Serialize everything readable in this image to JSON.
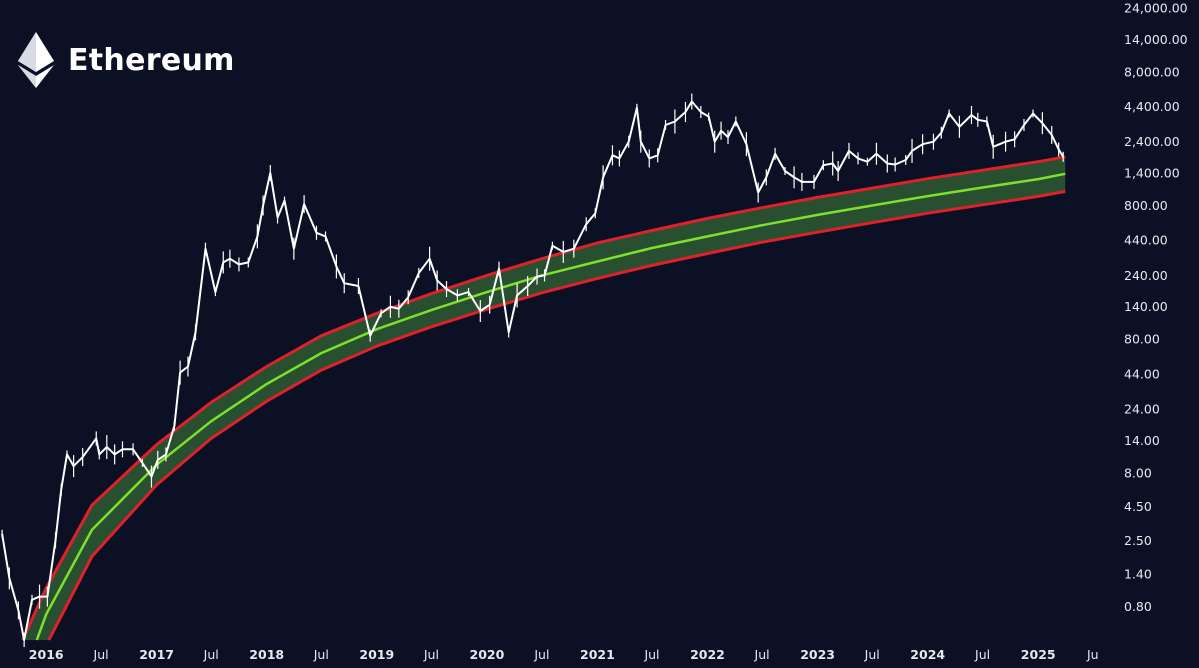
{
  "brand": {
    "title": "Ethereum",
    "logo_icon": "ethereum-diamond-icon"
  },
  "colors": {
    "background": "#0b1024",
    "price": "#ffffff",
    "band_edge": "#e0202a",
    "band_fill": "#2e5a33",
    "band_mid": "#7ee02a",
    "axis_text": "#e6e8ee"
  },
  "chart_data": {
    "type": "line",
    "yscale": "log",
    "grid": false,
    "legend": "none",
    "title": "Ethereum",
    "ylim": [
      0.45,
      24000
    ],
    "xlim": [
      "2015-08-01",
      "2025-07-25"
    ],
    "y_ticks": [
      {
        "value": 24000,
        "label": "24,000.00"
      },
      {
        "value": 14000,
        "label": "14,000.00"
      },
      {
        "value": 8000,
        "label": "8,000.00"
      },
      {
        "value": 4400,
        "label": "4,400.00"
      },
      {
        "value": 2400,
        "label": "2,400.00"
      },
      {
        "value": 1400,
        "label": "1,400.00"
      },
      {
        "value": 800,
        "label": "800.00"
      },
      {
        "value": 440,
        "label": "440.00"
      },
      {
        "value": 240,
        "label": "240.00"
      },
      {
        "value": 140,
        "label": "140.00"
      },
      {
        "value": 80,
        "label": "80.00"
      },
      {
        "value": 44,
        "label": "44.00"
      },
      {
        "value": 24,
        "label": "24.00"
      },
      {
        "value": 14,
        "label": "14.00"
      },
      {
        "value": 8,
        "label": "8.00"
      },
      {
        "value": 4.5,
        "label": "4.50"
      },
      {
        "value": 2.5,
        "label": "2.50"
      },
      {
        "value": 1.4,
        "label": "1.40"
      },
      {
        "value": 0.8,
        "label": "0.80"
      }
    ],
    "x_ticks": [
      {
        "date": "2016-01-01",
        "label": "2016",
        "bold": true
      },
      {
        "date": "2016-07-01",
        "label": "Jul",
        "bold": false
      },
      {
        "date": "2017-01-01",
        "label": "2017",
        "bold": true
      },
      {
        "date": "2017-07-01",
        "label": "Jul",
        "bold": false
      },
      {
        "date": "2018-01-01",
        "label": "2018",
        "bold": true
      },
      {
        "date": "2018-07-01",
        "label": "Jul",
        "bold": false
      },
      {
        "date": "2019-01-01",
        "label": "2019",
        "bold": true
      },
      {
        "date": "2019-07-01",
        "label": "Jul",
        "bold": false
      },
      {
        "date": "2020-01-01",
        "label": "2020",
        "bold": true
      },
      {
        "date": "2020-07-01",
        "label": "Jul",
        "bold": false
      },
      {
        "date": "2021-01-01",
        "label": "2021",
        "bold": true
      },
      {
        "date": "2021-07-01",
        "label": "Jul",
        "bold": false
      },
      {
        "date": "2022-01-01",
        "label": "2022",
        "bold": true
      },
      {
        "date": "2022-07-01",
        "label": "Jul",
        "bold": false
      },
      {
        "date": "2023-01-01",
        "label": "2023",
        "bold": true
      },
      {
        "date": "2023-07-01",
        "label": "Jul",
        "bold": false
      },
      {
        "date": "2024-01-01",
        "label": "2024",
        "bold": true
      },
      {
        "date": "2024-07-01",
        "label": "Jul",
        "bold": false
      },
      {
        "date": "2025-01-01",
        "label": "2025",
        "bold": true
      },
      {
        "date": "2025-07-01",
        "label": "Ju",
        "bold": false
      }
    ],
    "series": [
      {
        "kind": "price",
        "points": [
          [
            "2015-08-08",
            2.8
          ],
          [
            "2015-09-01",
            1.3
          ],
          [
            "2015-10-01",
            0.75
          ],
          [
            "2015-10-20",
            0.45
          ],
          [
            "2015-11-15",
            0.9
          ],
          [
            "2015-12-10",
            0.95
          ],
          [
            "2016-01-05",
            0.95
          ],
          [
            "2016-02-01",
            2.5
          ],
          [
            "2016-02-20",
            6.0
          ],
          [
            "2016-03-10",
            11.0
          ],
          [
            "2016-04-01",
            9.0
          ],
          [
            "2016-05-01",
            10.5
          ],
          [
            "2016-06-15",
            14.5
          ],
          [
            "2016-06-25",
            11.0
          ],
          [
            "2016-07-20",
            12.5
          ],
          [
            "2016-08-15",
            11.0
          ],
          [
            "2016-09-10",
            12.0
          ],
          [
            "2016-10-15",
            12.0
          ],
          [
            "2016-11-15",
            9.5
          ],
          [
            "2016-12-15",
            7.5
          ],
          [
            "2017-01-05",
            10.0
          ],
          [
            "2017-02-01",
            11.0
          ],
          [
            "2017-03-01",
            18.0
          ],
          [
            "2017-03-20",
            45.0
          ],
          [
            "2017-04-15",
            50.0
          ],
          [
            "2017-05-10",
            90.0
          ],
          [
            "2017-06-12",
            380.0
          ],
          [
            "2017-07-15",
            180.0
          ],
          [
            "2017-08-10",
            300.0
          ],
          [
            "2017-09-01",
            320.0
          ],
          [
            "2017-10-01",
            290.0
          ],
          [
            "2017-11-01",
            300.0
          ],
          [
            "2017-12-01",
            470.0
          ],
          [
            "2017-12-20",
            800.0
          ],
          [
            "2018-01-13",
            1400.0
          ],
          [
            "2018-02-06",
            650.0
          ],
          [
            "2018-03-01",
            870.0
          ],
          [
            "2018-04-01",
            380.0
          ],
          [
            "2018-05-05",
            820.0
          ],
          [
            "2018-06-15",
            500.0
          ],
          [
            "2018-07-15",
            470.0
          ],
          [
            "2018-08-20",
            280.0
          ],
          [
            "2018-09-15",
            210.0
          ],
          [
            "2018-11-01",
            200.0
          ],
          [
            "2018-12-10",
            85.0
          ],
          [
            "2019-01-15",
            125.0
          ],
          [
            "2019-02-15",
            140.0
          ],
          [
            "2019-03-15",
            135.0
          ],
          [
            "2019-04-15",
            165.0
          ],
          [
            "2019-05-20",
            250.0
          ],
          [
            "2019-06-25",
            320.0
          ],
          [
            "2019-07-20",
            220.0
          ],
          [
            "2019-08-20",
            190.0
          ],
          [
            "2019-09-25",
            170.0
          ],
          [
            "2019-11-01",
            180.0
          ],
          [
            "2019-12-10",
            130.0
          ],
          [
            "2020-01-10",
            145.0
          ],
          [
            "2020-02-10",
            270.0
          ],
          [
            "2020-03-13",
            90.0
          ],
          [
            "2020-04-10",
            170.0
          ],
          [
            "2020-05-15",
            200.0
          ],
          [
            "2020-06-15",
            235.0
          ],
          [
            "2020-07-10",
            240.0
          ],
          [
            "2020-08-05",
            400.0
          ],
          [
            "2020-09-10",
            360.0
          ],
          [
            "2020-10-15",
            380.0
          ],
          [
            "2020-11-25",
            580.0
          ],
          [
            "2020-12-25",
            700.0
          ],
          [
            "2021-01-20",
            1300.0
          ],
          [
            "2021-02-20",
            1900.0
          ],
          [
            "2021-03-15",
            1800.0
          ],
          [
            "2021-04-15",
            2400.0
          ],
          [
            "2021-05-12",
            4300.0
          ],
          [
            "2021-05-25",
            2400.0
          ],
          [
            "2021-06-22",
            1800.0
          ],
          [
            "2021-07-20",
            1900.0
          ],
          [
            "2021-08-15",
            3200.0
          ],
          [
            "2021-09-15",
            3400.0
          ],
          [
            "2021-10-20",
            4000.0
          ],
          [
            "2021-11-10",
            4800.0
          ],
          [
            "2021-12-10",
            4000.0
          ],
          [
            "2022-01-05",
            3700.0
          ],
          [
            "2022-01-25",
            2400.0
          ],
          [
            "2022-02-15",
            2900.0
          ],
          [
            "2022-03-10",
            2600.0
          ],
          [
            "2022-04-05",
            3400.0
          ],
          [
            "2022-05-10",
            2300.0
          ],
          [
            "2022-06-18",
            1000.0
          ],
          [
            "2022-07-15",
            1300.0
          ],
          [
            "2022-08-13",
            1950.0
          ],
          [
            "2022-09-15",
            1450.0
          ],
          [
            "2022-10-15",
            1300.0
          ],
          [
            "2022-11-10",
            1200.0
          ],
          [
            "2022-12-20",
            1200.0
          ],
          [
            "2023-01-20",
            1600.0
          ],
          [
            "2023-02-20",
            1650.0
          ],
          [
            "2023-03-10",
            1450.0
          ],
          [
            "2023-04-15",
            2050.0
          ],
          [
            "2023-05-15",
            1800.0
          ],
          [
            "2023-06-15",
            1700.0
          ],
          [
            "2023-07-15",
            1950.0
          ],
          [
            "2023-08-20",
            1650.0
          ],
          [
            "2023-09-15",
            1620.0
          ],
          [
            "2023-10-20",
            1750.0
          ],
          [
            "2023-11-10",
            2050.0
          ],
          [
            "2023-12-15",
            2300.0
          ],
          [
            "2024-01-20",
            2400.0
          ],
          [
            "2024-02-15",
            2800.0
          ],
          [
            "2024-03-12",
            3900.0
          ],
          [
            "2024-04-15",
            3100.0
          ],
          [
            "2024-05-25",
            3800.0
          ],
          [
            "2024-06-15",
            3500.0
          ],
          [
            "2024-07-15",
            3400.0
          ],
          [
            "2024-08-05",
            2200.0
          ],
          [
            "2024-09-15",
            2400.0
          ],
          [
            "2024-10-15",
            2500.0
          ],
          [
            "2024-11-15",
            3200.0
          ],
          [
            "2024-12-15",
            3900.0
          ],
          [
            "2025-01-15",
            3300.0
          ],
          [
            "2025-02-15",
            2700.0
          ],
          [
            "2025-03-10",
            2100.0
          ],
          [
            "2025-03-25",
            1850.0
          ]
        ]
      },
      {
        "kind": "band_upper",
        "points": [
          [
            "2015-10-15",
            0.45
          ],
          [
            "2016-01-01",
            1.1
          ],
          [
            "2016-06-01",
            4.6
          ],
          [
            "2017-01-01",
            13.0
          ],
          [
            "2017-07-01",
            27.0
          ],
          [
            "2018-01-01",
            50.0
          ],
          [
            "2018-07-01",
            85.0
          ],
          [
            "2019-01-01",
            125.0
          ],
          [
            "2019-07-01",
            175.0
          ],
          [
            "2020-01-01",
            240.0
          ],
          [
            "2020-07-01",
            320.0
          ],
          [
            "2021-01-01",
            420.0
          ],
          [
            "2021-07-01",
            520.0
          ],
          [
            "2022-01-01",
            640.0
          ],
          [
            "2022-07-01",
            770.0
          ],
          [
            "2023-01-01",
            920.0
          ],
          [
            "2023-07-01",
            1080.0
          ],
          [
            "2024-01-01",
            1270.0
          ],
          [
            "2024-07-01",
            1470.0
          ],
          [
            "2025-01-01",
            1700.0
          ],
          [
            "2025-04-01",
            1850.0
          ]
        ]
      },
      {
        "kind": "band_mid",
        "points": [
          [
            "2015-12-01",
            0.45
          ],
          [
            "2016-01-01",
            0.7
          ],
          [
            "2016-06-01",
            3.0
          ],
          [
            "2017-01-01",
            9.2
          ],
          [
            "2017-07-01",
            19.5
          ],
          [
            "2018-01-01",
            37.0
          ],
          [
            "2018-07-01",
            63.0
          ],
          [
            "2019-01-01",
            95.0
          ],
          [
            "2019-07-01",
            132.0
          ],
          [
            "2020-01-01",
            180.0
          ],
          [
            "2020-07-01",
            240.0
          ],
          [
            "2021-01-01",
            305.0
          ],
          [
            "2021-07-01",
            385.0
          ],
          [
            "2022-01-01",
            470.0
          ],
          [
            "2022-07-01",
            570.0
          ],
          [
            "2023-01-01",
            680.0
          ],
          [
            "2023-07-01",
            800.0
          ],
          [
            "2024-01-01",
            940.0
          ],
          [
            "2024-07-01",
            1090.0
          ],
          [
            "2025-01-01",
            1260.0
          ],
          [
            "2025-04-01",
            1380.0
          ]
        ]
      },
      {
        "kind": "band_lower",
        "points": [
          [
            "2016-01-10",
            0.45
          ],
          [
            "2016-06-01",
            1.9
          ],
          [
            "2017-01-01",
            6.5
          ],
          [
            "2017-07-01",
            14.5
          ],
          [
            "2018-01-01",
            27.5
          ],
          [
            "2018-07-01",
            47.0
          ],
          [
            "2019-01-01",
            71.0
          ],
          [
            "2019-07-01",
            99.0
          ],
          [
            "2020-01-01",
            134.0
          ],
          [
            "2020-07-01",
            178.0
          ],
          [
            "2021-01-01",
            228.0
          ],
          [
            "2021-07-01",
            285.0
          ],
          [
            "2022-01-01",
            350.0
          ],
          [
            "2022-07-01",
            425.0
          ],
          [
            "2023-01-01",
            505.0
          ],
          [
            "2023-07-01",
            595.0
          ],
          [
            "2024-01-01",
            700.0
          ],
          [
            "2024-07-01",
            810.0
          ],
          [
            "2025-01-01",
            935.0
          ],
          [
            "2025-04-01",
            1020.0
          ]
        ]
      }
    ]
  }
}
